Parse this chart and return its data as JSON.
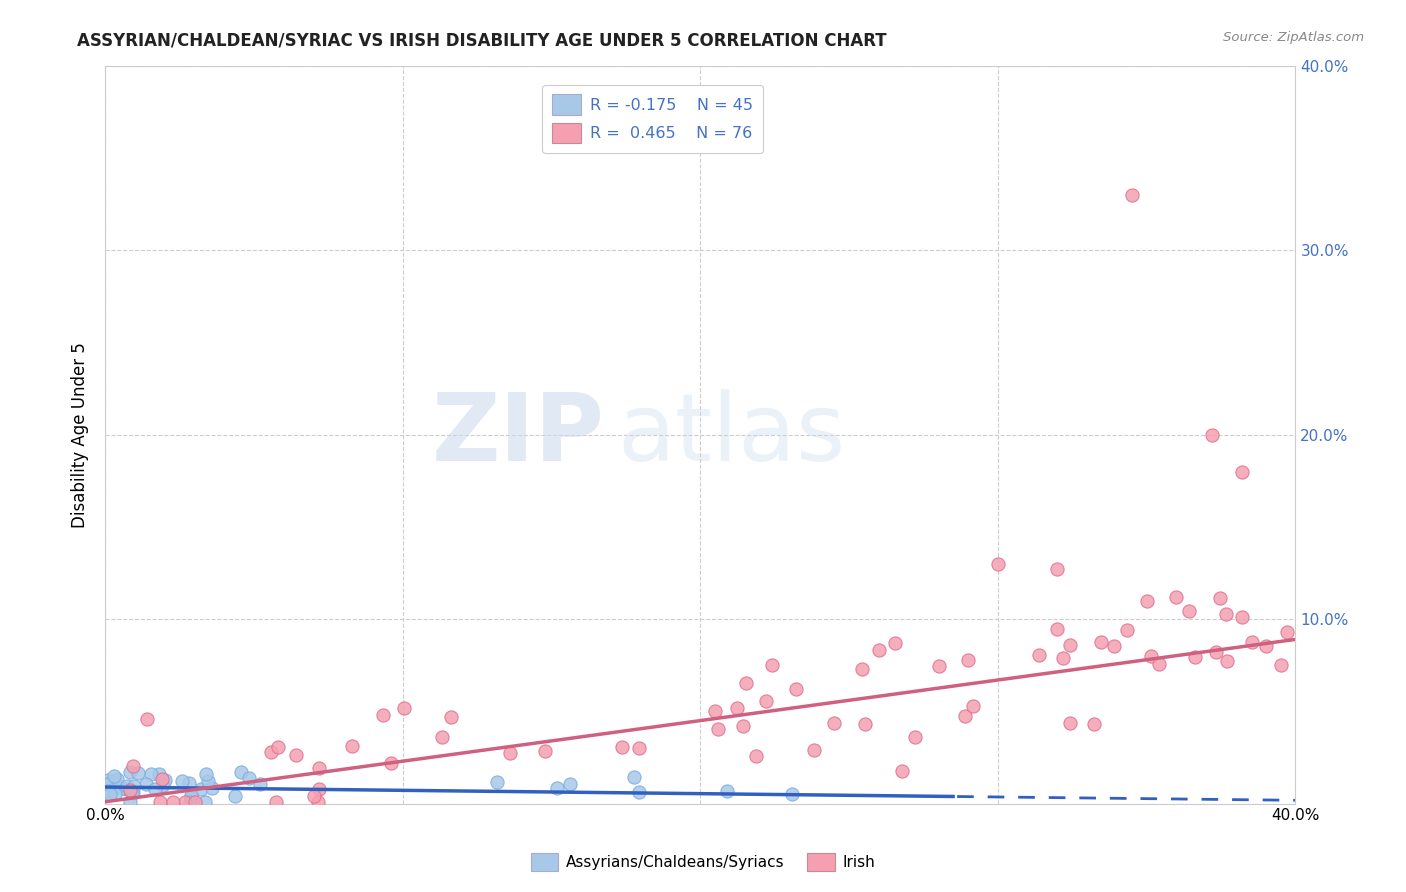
{
  "title": "ASSYRIAN/CHALDEAN/SYRIAC VS IRISH DISABILITY AGE UNDER 5 CORRELATION CHART",
  "source": "Source: ZipAtlas.com",
  "ylabel": "Disability Age Under 5",
  "color_blue": "#a8c8e8",
  "color_pink": "#f4a0b0",
  "color_blue_line": "#3060c0",
  "color_pink_line": "#d06080",
  "background": "#ffffff",
  "watermark_zip": "ZIP",
  "watermark_atlas": "atlas",
  "right_tick_color": "#4472c4"
}
